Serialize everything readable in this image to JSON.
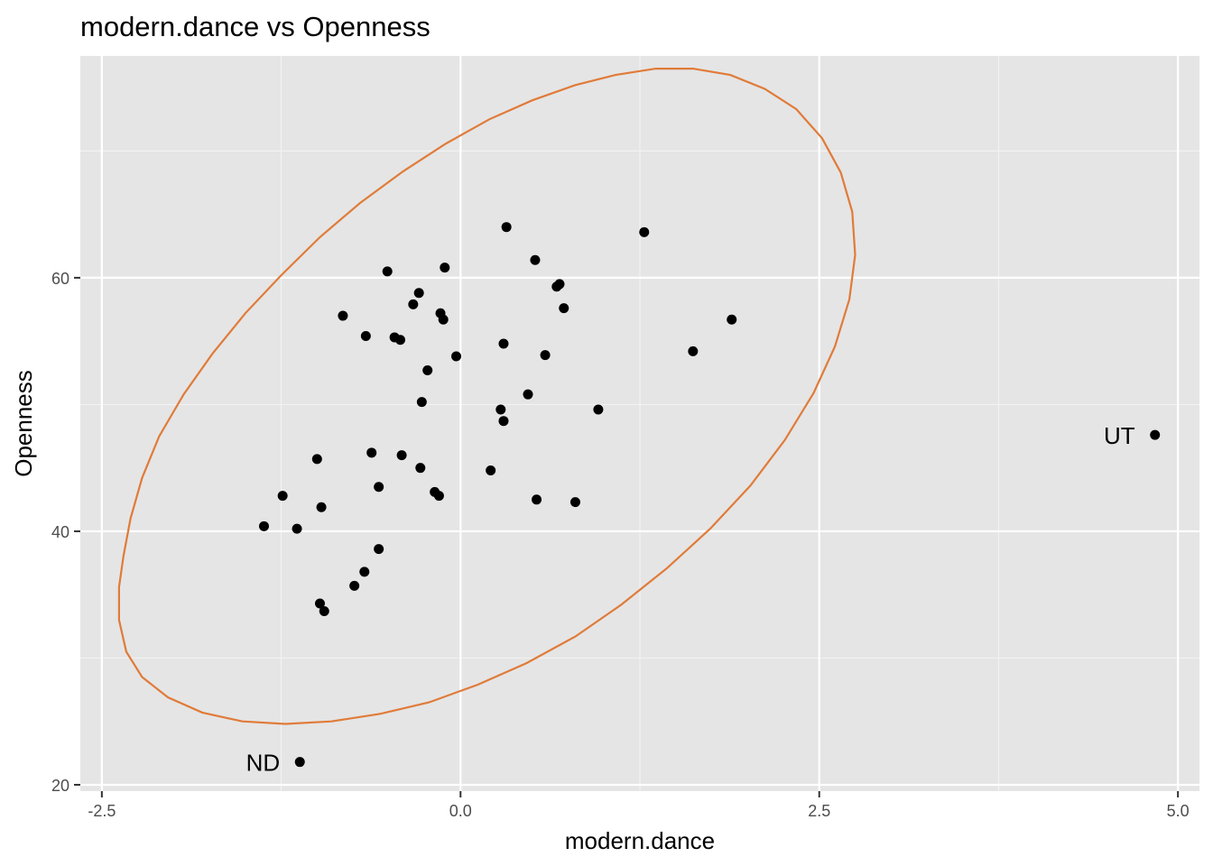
{
  "chart_data": {
    "type": "scatter",
    "title": "modern.dance vs Openness",
    "xlabel": "modern.dance",
    "ylabel": "Openness",
    "xlim": [
      -2.65,
      5.15
    ],
    "ylim": [
      19.5,
      77.5
    ],
    "x_ticks": [
      -2.5,
      0.0,
      2.5,
      5.0
    ],
    "x_tick_labels": [
      "-2.5",
      "0.0",
      "2.5",
      "5.0"
    ],
    "y_ticks": [
      20,
      40,
      60
    ],
    "y_tick_labels": [
      "20",
      "40",
      "60"
    ],
    "x_minor": [
      -1.25,
      1.25,
      3.75
    ],
    "y_minor": [
      30,
      50,
      70
    ],
    "grid": true,
    "background": "#e5e5e5",
    "point_color": "#000000",
    "ellipse_color": "#e07b39",
    "ellipse": {
      "center": [
        -0.118,
        49.8
      ],
      "points": [
        [
          -2.35,
          38.0
        ],
        [
          -2.3,
          41.0
        ],
        [
          -2.22,
          44.2
        ],
        [
          -2.1,
          47.5
        ],
        [
          -1.93,
          50.8
        ],
        [
          -1.73,
          54.0
        ],
        [
          -1.5,
          57.2
        ],
        [
          -1.25,
          60.2
        ],
        [
          -0.98,
          63.2
        ],
        [
          -0.7,
          65.9
        ],
        [
          -0.4,
          68.4
        ],
        [
          -0.1,
          70.6
        ],
        [
          0.2,
          72.5
        ],
        [
          0.5,
          74.0
        ],
        [
          0.8,
          75.2
        ],
        [
          1.08,
          76.0
        ],
        [
          1.36,
          76.5
        ],
        [
          1.62,
          76.5
        ],
        [
          1.88,
          76.0
        ],
        [
          2.12,
          74.9
        ],
        [
          2.34,
          73.3
        ],
        [
          2.52,
          71.0
        ],
        [
          2.65,
          68.3
        ],
        [
          2.73,
          65.2
        ],
        [
          2.75,
          61.8
        ],
        [
          2.71,
          58.3
        ],
        [
          2.61,
          54.6
        ],
        [
          2.46,
          50.9
        ],
        [
          2.26,
          47.2
        ],
        [
          2.02,
          43.6
        ],
        [
          1.74,
          40.2
        ],
        [
          1.44,
          37.1
        ],
        [
          1.12,
          34.2
        ],
        [
          0.8,
          31.7
        ],
        [
          0.46,
          29.6
        ],
        [
          0.12,
          27.9
        ],
        [
          -0.22,
          26.5
        ],
        [
          -0.56,
          25.6
        ],
        [
          -0.9,
          25.0
        ],
        [
          -1.22,
          24.8
        ],
        [
          -1.52,
          25.0
        ],
        [
          -1.8,
          25.7
        ],
        [
          -2.04,
          26.9
        ],
        [
          -2.22,
          28.5
        ],
        [
          -2.33,
          30.5
        ],
        [
          -2.38,
          33.0
        ],
        [
          -2.38,
          35.6
        ],
        [
          -2.35,
          38.0
        ]
      ]
    },
    "points": [
      {
        "x": 0.32,
        "y": 64.0
      },
      {
        "x": 1.28,
        "y": 63.6
      },
      {
        "x": 0.52,
        "y": 61.4
      },
      {
        "x": -0.51,
        "y": 60.5
      },
      {
        "x": -0.11,
        "y": 60.8
      },
      {
        "x": 0.69,
        "y": 59.5
      },
      {
        "x": 0.67,
        "y": 59.3
      },
      {
        "x": -0.29,
        "y": 58.8
      },
      {
        "x": -0.33,
        "y": 57.9
      },
      {
        "x": 0.72,
        "y": 57.6
      },
      {
        "x": -0.82,
        "y": 57.0
      },
      {
        "x": -0.14,
        "y": 57.2
      },
      {
        "x": -0.12,
        "y": 56.7
      },
      {
        "x": 1.89,
        "y": 56.7
      },
      {
        "x": -0.66,
        "y": 55.4
      },
      {
        "x": -0.46,
        "y": 55.3
      },
      {
        "x": -0.42,
        "y": 55.1
      },
      {
        "x": 0.3,
        "y": 54.8
      },
      {
        "x": 1.62,
        "y": 54.2
      },
      {
        "x": 0.59,
        "y": 53.9
      },
      {
        "x": -0.03,
        "y": 53.8
      },
      {
        "x": -0.23,
        "y": 52.7
      },
      {
        "x": 0.47,
        "y": 50.8
      },
      {
        "x": -0.27,
        "y": 50.2
      },
      {
        "x": 0.28,
        "y": 49.6
      },
      {
        "x": 0.96,
        "y": 49.6
      },
      {
        "x": 0.3,
        "y": 48.7
      },
      {
        "x": 4.84,
        "y": 47.6,
        "label": "UT"
      },
      {
        "x": -0.62,
        "y": 46.2
      },
      {
        "x": -0.41,
        "y": 46.0
      },
      {
        "x": -1.0,
        "y": 45.7
      },
      {
        "x": -0.28,
        "y": 45.0
      },
      {
        "x": 0.21,
        "y": 44.8
      },
      {
        "x": -0.57,
        "y": 43.5
      },
      {
        "x": -0.18,
        "y": 43.1
      },
      {
        "x": -0.15,
        "y": 42.8
      },
      {
        "x": -1.24,
        "y": 42.8
      },
      {
        "x": 0.53,
        "y": 42.5
      },
      {
        "x": 0.8,
        "y": 42.3
      },
      {
        "x": -0.97,
        "y": 41.9
      },
      {
        "x": -1.37,
        "y": 40.4
      },
      {
        "x": -1.14,
        "y": 40.2
      },
      {
        "x": -0.57,
        "y": 38.6
      },
      {
        "x": -0.67,
        "y": 36.8
      },
      {
        "x": -0.74,
        "y": 35.7
      },
      {
        "x": -0.98,
        "y": 34.3
      },
      {
        "x": -0.95,
        "y": 33.7
      },
      {
        "x": -1.12,
        "y": 21.8,
        "label": "ND"
      }
    ]
  }
}
